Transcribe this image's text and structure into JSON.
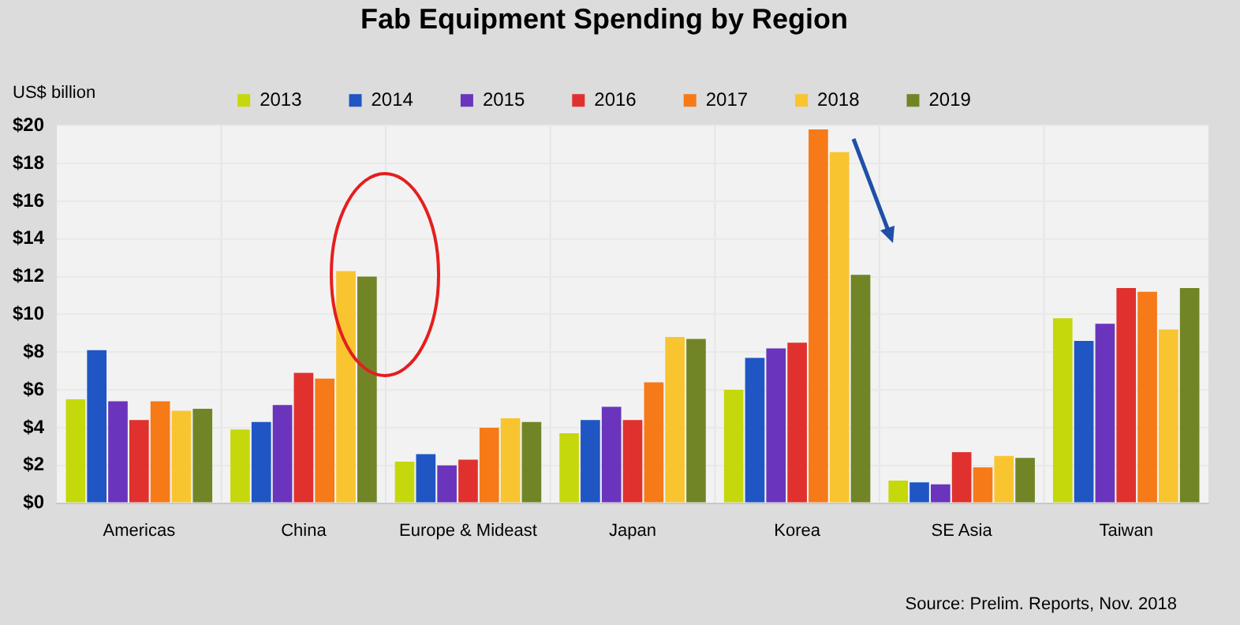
{
  "chart_data": {
    "type": "bar",
    "title": "Fab Equipment Spending by Region",
    "ylabel": "US$ billion",
    "categories": [
      "Americas",
      "China",
      "Europe & Mideast",
      "Japan",
      "Korea",
      "SE Asia",
      "Taiwan"
    ],
    "series": [
      {
        "name": "2013",
        "color": "#c5d80c",
        "values": [
          5.5,
          3.9,
          2.2,
          3.7,
          6.0,
          1.2,
          9.8
        ]
      },
      {
        "name": "2014",
        "color": "#1f56c4",
        "values": [
          8.1,
          4.3,
          2.6,
          4.4,
          7.7,
          1.1,
          8.6
        ]
      },
      {
        "name": "2015",
        "color": "#6a35bc",
        "values": [
          5.4,
          5.2,
          2.0,
          5.1,
          8.2,
          1.0,
          9.5
        ]
      },
      {
        "name": "2016",
        "color": "#e0312e",
        "values": [
          4.4,
          6.9,
          2.3,
          4.4,
          8.5,
          2.7,
          11.4
        ]
      },
      {
        "name": "2017",
        "color": "#f67a18",
        "values": [
          5.4,
          6.6,
          4.0,
          6.4,
          19.8,
          1.9,
          11.2
        ]
      },
      {
        "name": "2018",
        "color": "#f8c531",
        "values": [
          4.9,
          12.3,
          4.5,
          8.8,
          18.6,
          2.5,
          9.2
        ]
      },
      {
        "name": "2019",
        "color": "#718527",
        "values": [
          5.0,
          12.0,
          4.3,
          8.7,
          12.1,
          2.4,
          11.4
        ]
      }
    ],
    "ylim": [
      0,
      20
    ],
    "yticks": [
      {
        "value": 0,
        "label": "$0"
      },
      {
        "value": 2,
        "label": "$2"
      },
      {
        "value": 4,
        "label": "$4"
      },
      {
        "value": 6,
        "label": "$6"
      },
      {
        "value": 8,
        "label": "$8"
      },
      {
        "value": 10,
        "label": "$10"
      },
      {
        "value": 12,
        "label": "$12"
      },
      {
        "value": 14,
        "label": "$14"
      },
      {
        "value": 16,
        "label": "$16"
      },
      {
        "value": 18,
        "label": "$18"
      },
      {
        "value": 20,
        "label": "$20"
      }
    ],
    "grid": true,
    "legend": "top",
    "annotations": [
      "Source: Prelim. Reports, Nov. 2018"
    ]
  }
}
